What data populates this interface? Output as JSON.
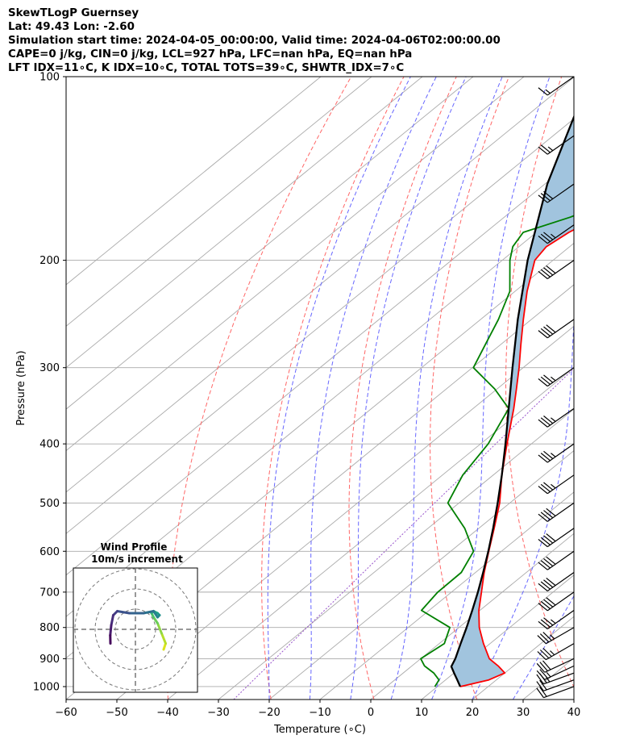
{
  "header": {
    "line1": "SkewTLogP Guernsey",
    "line2": "Lat: 49.43   Lon: -2.60",
    "line3": "Simulation start time: 2024-04-05_00:00:00, Valid time: 2024-04-06T02:00:00.00",
    "line4": "CAPE=0 j/kg, CIN=0 j/kg, LCL=927 hPa, LFC=nan hPa, EQ=nan hPa",
    "line5": "LFT IDX=11∘C, K IDX=10∘C, TOTAL TOTS=39∘C, SHWTR_IDX=7∘C"
  },
  "colors": {
    "temperature": "#ff0000",
    "dewpoint": "#008000",
    "parcel": "#000000",
    "cape_fill": "#a1c4de",
    "dry_adiabats": "#ff6666",
    "moist_adiabats": "#6666ff",
    "mixing_ratio": "#9955cc",
    "isotherms": "#aaaaaa"
  },
  "chart_data": {
    "type": "line",
    "subtype": "skew-t log-p",
    "xlabel": "Temperature (∘C)",
    "ylabel": "Pressure (hPa)",
    "xlim": [
      -60,
      40
    ],
    "ylim": [
      1050,
      100
    ],
    "y_scale": "log",
    "x_ticks": [
      -60,
      -50,
      -40,
      -30,
      -20,
      -10,
      0,
      10,
      20,
      30,
      40
    ],
    "x_tick_labels": [
      "−60",
      "−50",
      "−40",
      "−30",
      "−20",
      "−10",
      "0",
      "10",
      "20",
      "30",
      "40"
    ],
    "y_ticks": [
      1000,
      900,
      800,
      700,
      600,
      500,
      400,
      300,
      200,
      100
    ],
    "grid": true,
    "series": [
      {
        "key": "temperature",
        "pressure": [
          1000,
          975,
          950,
          925,
          900,
          850,
          800,
          750,
          700,
          650,
          600,
          550,
          500,
          450,
          400,
          350,
          325,
          300,
          275,
          250,
          225,
          200,
          190,
          180,
          170,
          160,
          150,
          140,
          130,
          120,
          110,
          100
        ],
        "values": [
          14.5,
          18.5,
          20.0,
          17.0,
          13.5,
          8.7,
          4.0,
          -0.2,
          -4.1,
          -8.3,
          -12.5,
          -17.0,
          -22.0,
          -28.3,
          -34.8,
          -42.0,
          -46.2,
          -50.8,
          -56.0,
          -61.6,
          -67.6,
          -73.6,
          -74.6,
          -73.6,
          -71.5,
          -66.0,
          -59.0,
          -54.0,
          -52.0,
          -51.0,
          -50.5,
          -50.3
        ]
      },
      {
        "key": "dewpoint",
        "pressure": [
          1000,
          975,
          950,
          925,
          900,
          850,
          800,
          750,
          700,
          650,
          600,
          550,
          500,
          450,
          400,
          350,
          325,
          300,
          275,
          250,
          225,
          200,
          190,
          180,
          170,
          160,
          150,
          140,
          130,
          120,
          110,
          100
        ],
        "values": [
          9.5,
          8.7,
          6.0,
          2.5,
          0.0,
          1.0,
          -1.8,
          -11.5,
          -12.7,
          -12.8,
          -15.5,
          -22.8,
          -32.2,
          -36.0,
          -38.5,
          -43.0,
          -50.5,
          -59.8,
          -63.0,
          -66.5,
          -71.0,
          -78.5,
          -81.2,
          -82.6,
          -77.0,
          -73.0,
          -73.8,
          -75.0,
          -73.0,
          -69.0,
          -65.0,
          -60.0
        ]
      },
      {
        "key": "parcel",
        "pressure": [
          1000,
          975,
          950,
          927,
          900,
          850,
          800,
          750,
          700,
          650,
          600,
          550,
          500,
          450,
          400,
          350,
          300,
          250,
          200,
          150,
          100
        ],
        "values": [
          14.5,
          12.3,
          10.0,
          7.9,
          6.8,
          4.2,
          1.5,
          -1.5,
          -4.8,
          -8.5,
          -12.6,
          -17.2,
          -22.4,
          -28.3,
          -35.1,
          -43.0,
          -52.1,
          -62.7,
          -75.0,
          -89.5,
          -107.0
        ]
      }
    ],
    "dry_adiabats_theta_K": [
      230,
      250,
      270,
      290,
      310,
      330,
      350,
      370,
      390,
      410,
      430,
      450,
      470,
      490
    ],
    "moist_adiabats_start_C": [
      -20,
      -12,
      -4,
      4,
      12,
      20,
      28
    ],
    "mixing_ratio_lines_gkg": [
      0.4
    ],
    "wind_barb_pressures": [
      1000,
      975,
      950,
      925,
      900,
      850,
      800,
      750,
      700,
      650,
      600,
      550,
      500,
      450,
      400,
      350,
      300,
      250,
      200,
      175,
      150,
      125,
      100
    ],
    "wind_barb_speeds_kt": [
      20,
      20,
      25,
      25,
      30,
      35,
      35,
      35,
      40,
      40,
      40,
      40,
      40,
      35,
      35,
      35,
      35,
      40,
      40,
      35,
      30,
      25,
      15
    ],
    "wind_barb_dirs_deg": [
      250,
      250,
      250,
      245,
      245,
      240,
      240,
      235,
      235,
      235,
      235,
      235,
      235,
      235,
      235,
      235,
      235,
      235,
      235,
      235,
      235,
      235,
      235
    ],
    "hodograph": {
      "title": "Wind Profile",
      "subtitle": "10m/s increment",
      "rings_ms": [
        10,
        20,
        30
      ],
      "u": [
        14,
        15,
        13,
        11,
        9,
        8,
        9,
        11,
        12,
        11,
        9,
        4,
        -3,
        -9,
        -11,
        -12,
        -12.5,
        -12.4
      ],
      "v": [
        -10,
        -7,
        -2,
        3,
        6,
        8,
        9,
        8,
        7,
        6,
        9,
        8,
        8,
        9,
        7,
        2,
        -3,
        -7
      ]
    }
  }
}
